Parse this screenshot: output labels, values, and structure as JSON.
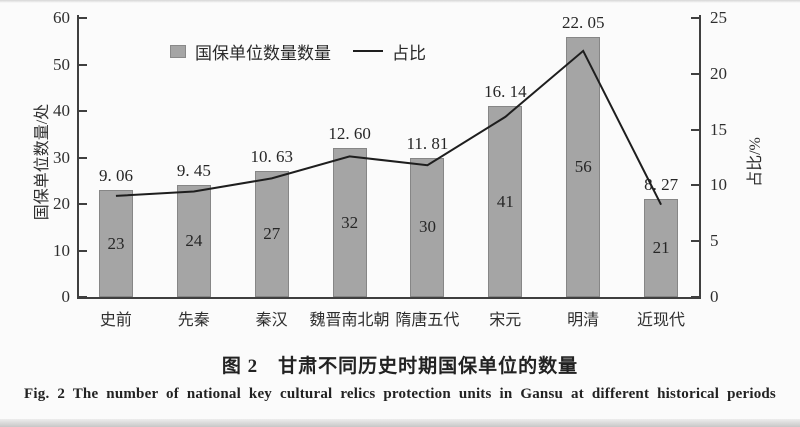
{
  "figure": {
    "caption_zh": "图 2　甘肃不同历史时期国保单位的数量",
    "caption_en": "Fig. 2  The number of national key cultural relics protection units in Gansu at different historical periods"
  },
  "chart_data": {
    "type": "bar",
    "subtype": "bar-with-line-overlay",
    "categories": [
      "史前",
      "先秦",
      "秦汉",
      "魏晋南北朝",
      "隋唐五代",
      "宋元",
      "明清",
      "近现代"
    ],
    "series": [
      {
        "name": "国保单位数量数量",
        "type": "bar",
        "axis": "left",
        "values": [
          23,
          24,
          27,
          32,
          30,
          41,
          56,
          21
        ]
      },
      {
        "name": "占比",
        "type": "line",
        "axis": "right",
        "values": [
          9.06,
          9.45,
          10.63,
          12.6,
          11.81,
          16.14,
          22.05,
          8.27
        ],
        "labels": [
          "9. 06",
          "9. 45",
          "10. 63",
          "12. 60",
          "11. 81",
          "16. 14",
          "22. 05",
          "8. 27"
        ]
      }
    ],
    "left_axis": {
      "title": "国保单位数量/处",
      "min": 0,
      "max": 60,
      "step": 10,
      "ticks": [
        0,
        10,
        20,
        30,
        40,
        50,
        60
      ]
    },
    "right_axis": {
      "title": "占比/%",
      "min": 0,
      "max": 25,
      "step": 5,
      "ticks": [
        0,
        5,
        10,
        15,
        20,
        25
      ]
    },
    "legend": {
      "bar_label": "国保单位数量数量",
      "line_label": "占比",
      "position": "top-center"
    },
    "grid": "off",
    "colors": {
      "bar": "#a5a5a5",
      "line": "#1e1e1e",
      "axis": "#3f3f3f",
      "text": "#2a2a2a",
      "background": "#fbfbfb"
    }
  }
}
